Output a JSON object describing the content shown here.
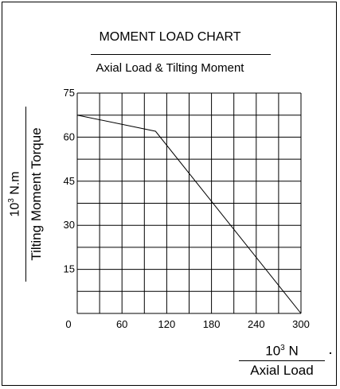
{
  "chart_data": {
    "type": "line",
    "title": "MOMENT LOAD CHART",
    "subtitle": "Axial Load & Tilting Moment",
    "xlabel": "Axial Load",
    "xunit_base": "10",
    "xunit_exp": "3",
    "xunit_rest": " N",
    "ylabel": "Tilting Moment Torque",
    "yunit_base": "10",
    "yunit_exp": "3",
    "yunit_rest": " N.m",
    "xlim": [
      0,
      300
    ],
    "ylim": [
      0,
      75
    ],
    "x_ticks": [
      {
        "value": 0,
        "label": "0"
      },
      {
        "value": 60,
        "label": "60"
      },
      {
        "value": 120,
        "label": "120"
      },
      {
        "value": 180,
        "label": "180"
      },
      {
        "value": 240,
        "label": "240"
      },
      {
        "value": 300,
        "label": "300"
      }
    ],
    "y_ticks": [
      {
        "value": 15,
        "label": "15"
      },
      {
        "value": 30,
        "label": "30"
      },
      {
        "value": 45,
        "label": "45"
      },
      {
        "value": 60,
        "label": "60"
      },
      {
        "value": 75,
        "label": "75"
      }
    ],
    "grid_x_step": 30,
    "grid_y_step": 7.5,
    "grid": true,
    "series": [
      {
        "x": [
          0,
          105,
          300
        ],
        "y": [
          67.5,
          62,
          0
        ],
        "color": "#000000"
      }
    ]
  }
}
